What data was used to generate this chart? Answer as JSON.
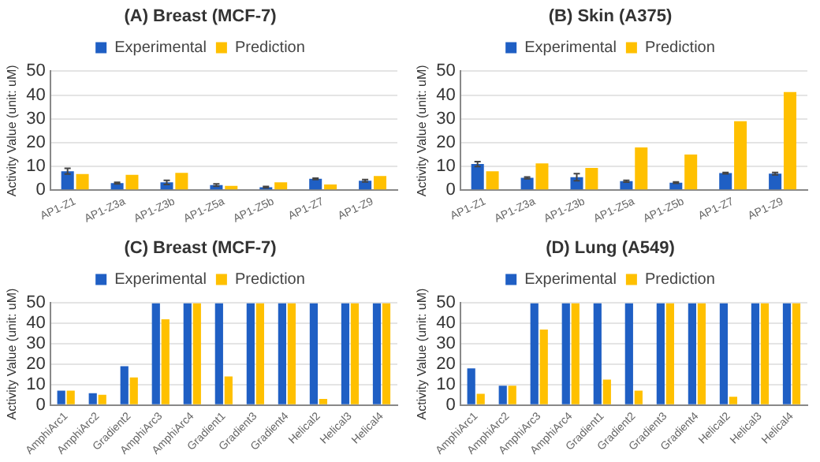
{
  "chart_data": [
    {
      "type": "bar",
      "title": "(A) Breast (MCF-7)",
      "ylabel": "Activity Value (unit: uM)",
      "categories": [
        "AP1-Z1",
        "AP1-Z3a",
        "AP1-Z3b",
        "AP1-Z5a",
        "AP1-Z5b",
        "AP1-Z7",
        "AP1-Z9"
      ],
      "series": [
        {
          "name": "Experimental",
          "color": "#1f5fc4",
          "values": [
            8,
            3,
            3.3,
            2.2,
            1.3,
            4.8,
            4
          ],
          "errors": [
            1.2,
            0.3,
            0.9,
            0.5,
            0.3,
            0.3,
            0.5
          ]
        },
        {
          "name": "Prediction",
          "color": "#ffc000",
          "values": [
            6.8,
            6.5,
            7.3,
            1.8,
            3.3,
            2.4,
            6
          ]
        }
      ],
      "ylim": [
        0,
        50
      ],
      "yticks": [
        0,
        10,
        20,
        30,
        40,
        50
      ],
      "grid": "y",
      "legend": "top"
    },
    {
      "type": "bar",
      "title": "(B) Skin (A375)",
      "ylabel": "Activity Value (unit: uM)",
      "categories": [
        "AP1-Z1",
        "AP1-Z3a",
        "AP1-Z3b",
        "AP1-Z5a",
        "AP1-Z5b",
        "AP1-Z7",
        "AP1-Z9"
      ],
      "series": [
        {
          "name": "Experimental",
          "color": "#1f5fc4",
          "values": [
            11,
            5.2,
            5.5,
            3.8,
            3.2,
            7.2,
            7
          ],
          "errors": [
            1,
            0.4,
            1.5,
            0.4,
            0.3,
            0.3,
            0.5
          ]
        },
        {
          "name": "Prediction",
          "color": "#ffc000",
          "values": [
            8,
            11.3,
            9.4,
            18,
            15,
            29,
            41.3
          ]
        }
      ],
      "ylim": [
        0,
        50
      ],
      "yticks": [
        0,
        10,
        20,
        30,
        40,
        50
      ],
      "grid": "y",
      "legend": "top"
    },
    {
      "type": "bar",
      "title": "(C) Breast (MCF-7)",
      "ylabel": "Activity Value (unit: uM)",
      "categories": [
        "AmphiArc1",
        "AmphiArc2",
        "Gradient2",
        "AmphiArc3",
        "AmphiArc4",
        "Gradient1",
        "Gradient3",
        "Gradient4",
        "Helical2",
        "Helical3",
        "Helical4"
      ],
      "series": [
        {
          "name": "Experimental",
          "color": "#1f5fc4",
          "values": [
            7,
            5.8,
            19,
            50,
            50,
            50,
            50,
            50,
            50,
            50,
            50
          ]
        },
        {
          "name": "Prediction",
          "color": "#ffc000",
          "values": [
            7,
            5,
            13.5,
            42,
            50,
            14,
            50,
            50,
            3,
            50,
            50
          ]
        }
      ],
      "ylim": [
        0,
        50
      ],
      "yticks": [
        0,
        10,
        20,
        30,
        40,
        50
      ],
      "grid": "y",
      "legend": "top"
    },
    {
      "type": "bar",
      "title": "(D) Lung (A549)",
      "ylabel": "Activity Value (unit: uM)",
      "categories": [
        "AmphiArc1",
        "AmphiArc2",
        "AmphiArc3",
        "AmphiArc4",
        "Gradient1",
        "Gradient2",
        "Gradient3",
        "Gradient4",
        "Helical2",
        "Helical3",
        "Helical4"
      ],
      "series": [
        {
          "name": "Experimental",
          "color": "#1f5fc4",
          "values": [
            18,
            9.5,
            50,
            50,
            50,
            50,
            50,
            50,
            50,
            50,
            50
          ]
        },
        {
          "name": "Prediction",
          "color": "#ffc000",
          "values": [
            5.5,
            9.5,
            37,
            50,
            12.5,
            7,
            50,
            50,
            4,
            50,
            50
          ]
        }
      ],
      "ylim": [
        0,
        50
      ],
      "yticks": [
        0,
        10,
        20,
        30,
        40,
        50
      ],
      "grid": "y",
      "legend": "top"
    }
  ]
}
